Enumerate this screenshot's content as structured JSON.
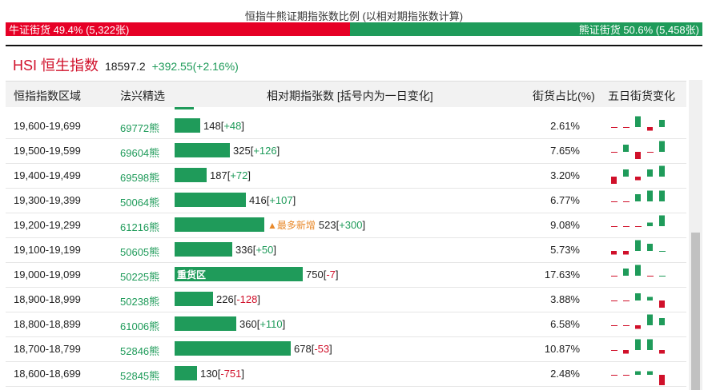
{
  "title": "恒指牛熊证期指张数比例 (以相对期指张数计算)",
  "ratio": {
    "bull_label": "牛证街货 49.4% (5,322张)",
    "bear_label": "熊证街货 50.6% (5,458张)",
    "bull_pct": 49.4,
    "colors": {
      "bull": "#e60026",
      "bear": "#1f9b5a"
    }
  },
  "index": {
    "name": "HSI 恒生指数",
    "price": "18597.2",
    "change": "+392.55(+2.16%)"
  },
  "columns": {
    "range": "恒指指数区域",
    "code": "法兴精选",
    "contracts": "相对期指张数 [括号内为一日变化]",
    "share": "街货占比(%)",
    "five_day": "五日街货变化"
  },
  "max_contracts": 750,
  "rows": [
    {
      "range": "19,600-19,699",
      "code": "69772熊",
      "contracts": 148,
      "contracts_label": "148",
      "delta": "+48",
      "pct": "2.61%",
      "marker": "",
      "spark": [
        0,
        0,
        3,
        -1,
        2
      ]
    },
    {
      "range": "19,500-19,599",
      "code": "69604熊",
      "contracts": 325,
      "contracts_label": "325",
      "delta": "+126",
      "pct": "7.65%",
      "marker": "",
      "spark": [
        0,
        2,
        -2,
        0,
        3
      ]
    },
    {
      "range": "19,400-19,499",
      "code": "69598熊",
      "contracts": 187,
      "contracts_label": "187",
      "delta": "+72",
      "pct": "3.20%",
      "marker": "",
      "spark": [
        -2,
        2,
        -1,
        2,
        3
      ]
    },
    {
      "range": "19,300-19,399",
      "code": "50064熊",
      "contracts": 416,
      "contracts_label": "416",
      "delta": "+107",
      "pct": "6.77%",
      "marker": "",
      "spark": [
        0,
        0,
        2,
        3,
        3
      ]
    },
    {
      "range": "19,200-19,299",
      "code": "61216熊",
      "contracts": 523,
      "contracts_label": "523",
      "delta": "+300",
      "pct": "9.08%",
      "marker": "▲最多新增",
      "spark": [
        0,
        0,
        0,
        1,
        3
      ]
    },
    {
      "range": "19,100-19,199",
      "code": "50605熊",
      "contracts": 336,
      "contracts_label": "336",
      "delta": "+50",
      "pct": "5.73%",
      "marker": "",
      "spark": [
        -1,
        -1,
        3,
        2,
        0
      ]
    },
    {
      "range": "19,000-19,099",
      "code": "50225熊",
      "contracts": 750,
      "contracts_label": "750",
      "delta": "-7",
      "pct": "17.63%",
      "marker": "",
      "bar_label": "重货区",
      "spark": [
        0,
        2,
        3,
        0,
        0
      ]
    },
    {
      "range": "18,900-18,999",
      "code": "50238熊",
      "contracts": 226,
      "contracts_label": "226",
      "delta": "-128",
      "pct": "3.88%",
      "marker": "",
      "spark": [
        0,
        0,
        2,
        1,
        -2
      ]
    },
    {
      "range": "18,800-18,899",
      "code": "61006熊",
      "contracts": 360,
      "contracts_label": "360",
      "delta": "+110",
      "pct": "6.58%",
      "marker": "",
      "spark": [
        0,
        0,
        -1,
        3,
        2
      ]
    },
    {
      "range": "18,700-18,799",
      "code": "52846熊",
      "contracts": 678,
      "contracts_label": "678",
      "delta": "-53",
      "pct": "10.87%",
      "marker": "",
      "spark": [
        0,
        -1,
        3,
        3,
        -1
      ]
    },
    {
      "range": "18,600-18,699",
      "code": "52845熊",
      "contracts": 130,
      "contracts_label": "130",
      "delta": "-751",
      "pct": "2.48%",
      "marker": "",
      "spark": [
        0,
        0,
        1,
        1,
        -3
      ]
    }
  ]
}
